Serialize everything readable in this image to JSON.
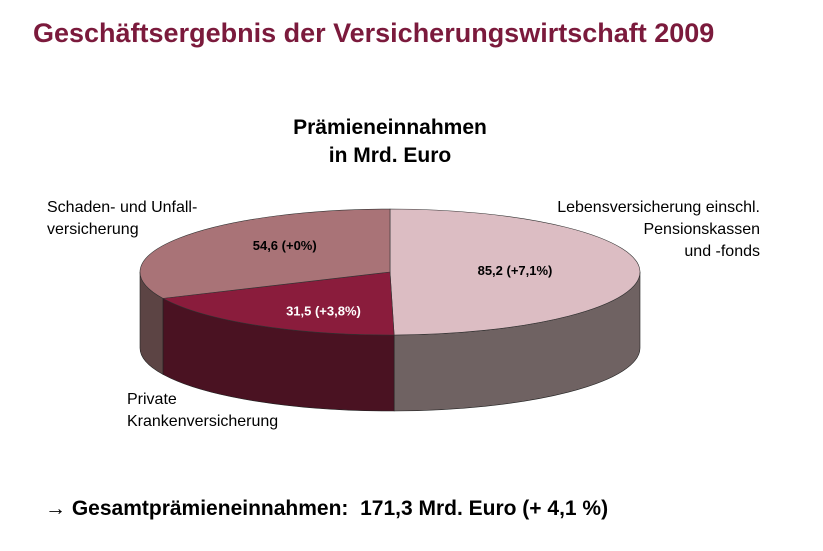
{
  "header": {
    "title": "Geschäftsergebnis der Versicherungswirtschaft 2009"
  },
  "chart_data": {
    "type": "pie",
    "title": "Prämieneinnahmen\nin Mrd. Euro",
    "categories": [
      "Lebensversicherung einschl.\nPensionskassen\nund -fonds",
      "Private\nKrankenversicherung",
      "Schaden- und Unfall-\nversicherung"
    ],
    "values": [
      85.2,
      31.5,
      54.6
    ],
    "value_labels": [
      "85,2 (+7,1%)",
      "31,5 (+3,8%)",
      "54,6 (+0%)"
    ],
    "colors": [
      "#dcbdc3",
      "#8a1c3c",
      "#a97377"
    ],
    "side_colors": [
      "#6f6262",
      "#4a1222",
      "#5c4444"
    ]
  },
  "footer": {
    "text": "→ Gesamtprämieneinnahmen:  171,3 Mrd. Euro (+ 4,1 %)"
  }
}
